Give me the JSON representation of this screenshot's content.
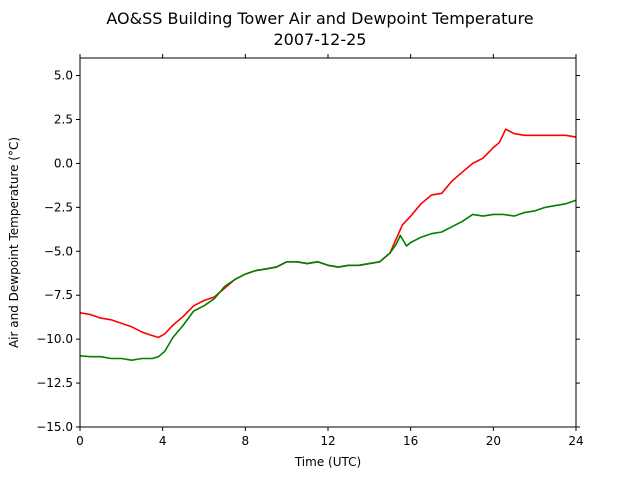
{
  "chart_data": {
    "type": "line",
    "title": "AO&SS Building Tower Air and Dewpoint Temperature",
    "subtitle": "2007-12-25",
    "xlabel": "Time (UTC)",
    "ylabel": "Air and Dewpoint Temperature (°C)",
    "xlim": [
      0,
      24
    ],
    "ylim": [
      -15.0,
      6.0
    ],
    "x_ticks": [
      0,
      4,
      8,
      12,
      16,
      20,
      24
    ],
    "x_tick_labels": [
      "0",
      "4",
      "8",
      "12",
      "16",
      "20",
      "24"
    ],
    "y_ticks": [
      -15.0,
      -12.5,
      -10.0,
      -7.5,
      -5.0,
      -2.5,
      0.0,
      2.5,
      5.0
    ],
    "y_tick_labels": [
      "−15.0",
      "−12.5",
      "−10.0",
      "−7.5",
      "−5.0",
      "−2.5",
      "0.0",
      "2.5",
      "5.0"
    ],
    "grid": false,
    "series": [
      {
        "color": "#ff0000",
        "x": [
          0,
          0.5,
          1,
          1.5,
          2,
          2.5,
          3,
          3.5,
          3.8,
          4.1,
          4.5,
          5,
          5.5,
          6,
          6.5,
          7,
          7.5,
          8,
          8.5,
          9,
          9.5,
          10,
          10.5,
          11,
          11.5,
          12,
          12.5,
          13,
          13.5,
          14,
          14.5,
          15,
          15.3,
          15.6,
          16,
          16.5,
          17,
          17.5,
          18,
          18.5,
          19,
          19.5,
          20,
          20.3,
          20.6,
          21,
          21.5,
          22,
          22.5,
          23,
          23.5,
          24
        ],
        "y": [
          -8.5,
          -8.6,
          -8.8,
          -8.9,
          -9.1,
          -9.3,
          -9.6,
          -9.8,
          -9.9,
          -9.7,
          -9.2,
          -8.7,
          -8.1,
          -7.8,
          -7.6,
          -7.1,
          -6.6,
          -6.3,
          -6.1,
          -6.0,
          -5.9,
          -5.6,
          -5.6,
          -5.7,
          -5.6,
          -5.8,
          -5.9,
          -5.8,
          -5.8,
          -5.7,
          -5.6,
          -5.1,
          -4.3,
          -3.5,
          -3.0,
          -2.3,
          -1.8,
          -1.7,
          -1.0,
          -0.5,
          0.0,
          0.3,
          0.9,
          1.2,
          1.95,
          1.7,
          1.6,
          1.6,
          1.6,
          1.6,
          1.6,
          1.5
        ]
      },
      {
        "color": "#008000",
        "x": [
          0,
          0.5,
          1,
          1.5,
          2,
          2.5,
          3,
          3.5,
          3.8,
          4.1,
          4.5,
          5,
          5.5,
          6,
          6.5,
          7,
          7.5,
          8,
          8.5,
          9,
          9.5,
          10,
          10.5,
          11,
          11.5,
          12,
          12.5,
          13,
          13.5,
          14,
          14.5,
          15,
          15.3,
          15.5,
          15.8,
          16,
          16.5,
          17,
          17.5,
          18,
          18.5,
          19,
          19.5,
          20,
          20.5,
          21,
          21.5,
          22,
          22.5,
          23,
          23.5,
          24
        ],
        "y": [
          -10.95,
          -11.0,
          -11.0,
          -11.1,
          -11.1,
          -11.2,
          -11.1,
          -11.1,
          -11.0,
          -10.7,
          -9.9,
          -9.2,
          -8.4,
          -8.1,
          -7.7,
          -7.0,
          -6.6,
          -6.3,
          -6.1,
          -6.0,
          -5.9,
          -5.6,
          -5.6,
          -5.7,
          -5.6,
          -5.8,
          -5.9,
          -5.8,
          -5.8,
          -5.7,
          -5.6,
          -5.1,
          -4.6,
          -4.1,
          -4.7,
          -4.5,
          -4.2,
          -4.0,
          -3.9,
          -3.6,
          -3.3,
          -2.9,
          -3.0,
          -2.9,
          -2.9,
          -3.0,
          -2.8,
          -2.7,
          -2.5,
          -2.4,
          -2.3,
          -2.1
        ]
      }
    ]
  }
}
